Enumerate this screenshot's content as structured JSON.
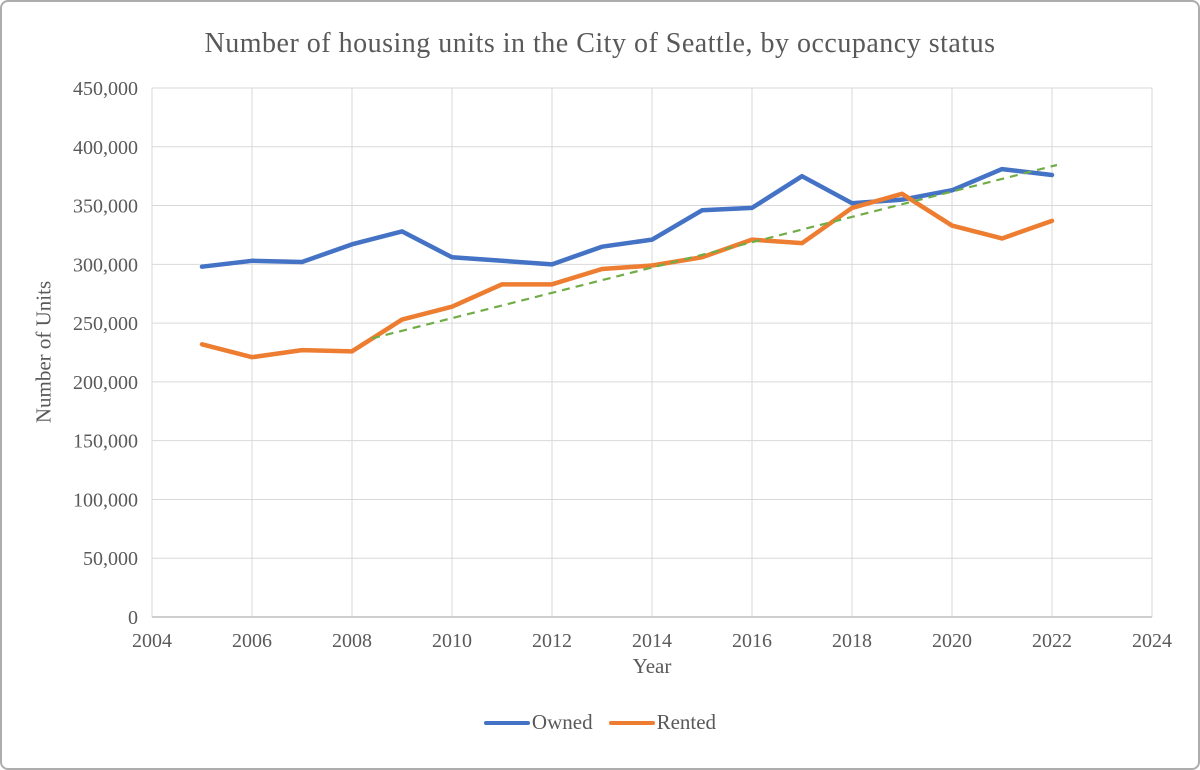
{
  "chart_data": {
    "type": "line",
    "title": "Number of housing units in the City of Seattle, by occupancy status",
    "xlabel": "Year",
    "ylabel": "Number of Units",
    "xlim": [
      2004,
      2024
    ],
    "ylim": [
      0,
      450000
    ],
    "grid": true,
    "legend_position": "bottom",
    "x_tick_values": [
      2004,
      2006,
      2008,
      2010,
      2012,
      2014,
      2016,
      2018,
      2020,
      2022,
      2024
    ],
    "x_ticks": [
      "2004",
      "2006",
      "2008",
      "2010",
      "2012",
      "2014",
      "2016",
      "2018",
      "2020",
      "2022",
      "2024"
    ],
    "y_tick_values": [
      0,
      50000,
      100000,
      150000,
      200000,
      250000,
      300000,
      350000,
      400000,
      450000
    ],
    "y_ticks": [
      "0",
      "50,000",
      "100,000",
      "150,000",
      "200,000",
      "250,000",
      "300,000",
      "350,000",
      "400,000",
      "450,000"
    ],
    "x": [
      2005,
      2006,
      2007,
      2008,
      2009,
      2010,
      2011,
      2012,
      2013,
      2014,
      2015,
      2016,
      2017,
      2018,
      2019,
      2020,
      2021,
      2022
    ],
    "series": [
      {
        "name": "Owned",
        "color": "#4472C4",
        "values": [
          298000,
          303000,
          302000,
          317000,
          328000,
          306000,
          303000,
          300000,
          315000,
          321000,
          346000,
          348000,
          375000,
          352000,
          355000,
          363000,
          381000,
          376000
        ]
      },
      {
        "name": "Rented",
        "color": "#ED7D31",
        "values": [
          232000,
          221000,
          227000,
          226000,
          253000,
          264000,
          283000,
          283000,
          296000,
          299000,
          306000,
          321000,
          318000,
          348000,
          360000,
          333000,
          322000,
          337000
        ]
      }
    ],
    "trendline": {
      "name": "linear-trendline",
      "color": "#70AD47",
      "style": "dashed",
      "start": {
        "x": 2008.4,
        "y": 237000
      },
      "end": {
        "x": 2022.1,
        "y": 384500
      }
    }
  },
  "colors": {
    "grid": "#D9D9D9",
    "axis": "#BFBFBF",
    "text": "#595959",
    "background": "#FFFFFF"
  }
}
